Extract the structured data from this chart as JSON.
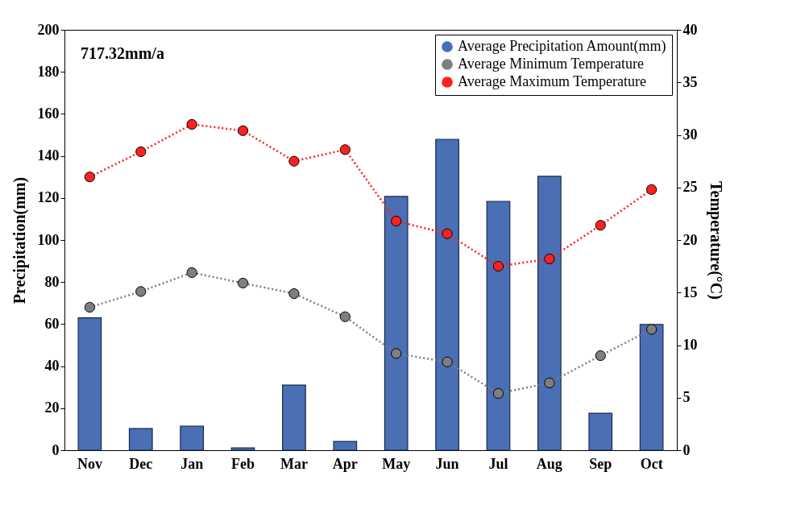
{
  "chart_data": {
    "type": "bar",
    "xlabel": null,
    "ylabel": "Precipitation(mm)",
    "y2label": "Temperature(°C)",
    "categories": [
      "Nov",
      "Dec",
      "Jan",
      "Feb",
      "Mar",
      "Apr",
      "May",
      "Jun",
      "Jul",
      "Aug",
      "Sep",
      "Oct"
    ],
    "series": [
      {
        "name": "Average Precipitation Amount(mm)",
        "color": "#4a6fb5",
        "values": [
          63,
          10.3,
          11.5,
          1.1,
          31,
          4.2,
          120.7,
          147.9,
          118.4,
          130.3,
          17.6,
          59.8
        ]
      },
      {
        "name": "Average Minimum Temperature",
        "type": "line",
        "axis": "y2",
        "color": "#7f7f7f",
        "values": [
          13.6,
          15.1,
          16.9,
          15.9,
          14.9,
          12.7,
          9.2,
          8.4,
          5.4,
          6.4,
          9.0,
          11.5
        ]
      },
      {
        "name": "Average Maximum Temperature",
        "type": "line",
        "axis": "y2",
        "color": "#ff2020",
        "values": [
          26.0,
          28.4,
          31.0,
          30.4,
          27.5,
          28.6,
          21.8,
          20.6,
          17.5,
          18.2,
          21.4,
          24.8
        ]
      }
    ],
    "ylim": [
      0,
      200
    ],
    "yticks": [
      0,
      20,
      40,
      60,
      80,
      100,
      120,
      140,
      160,
      180,
      200
    ],
    "y2lim": [
      0,
      40
    ],
    "y2ticks": [
      0,
      5,
      10,
      15,
      20,
      25,
      30,
      35,
      40
    ],
    "annotations": [
      "717.32mm/a"
    ],
    "marker": "circle",
    "line_style": "dotted",
    "grid": false,
    "legend": "top right"
  }
}
